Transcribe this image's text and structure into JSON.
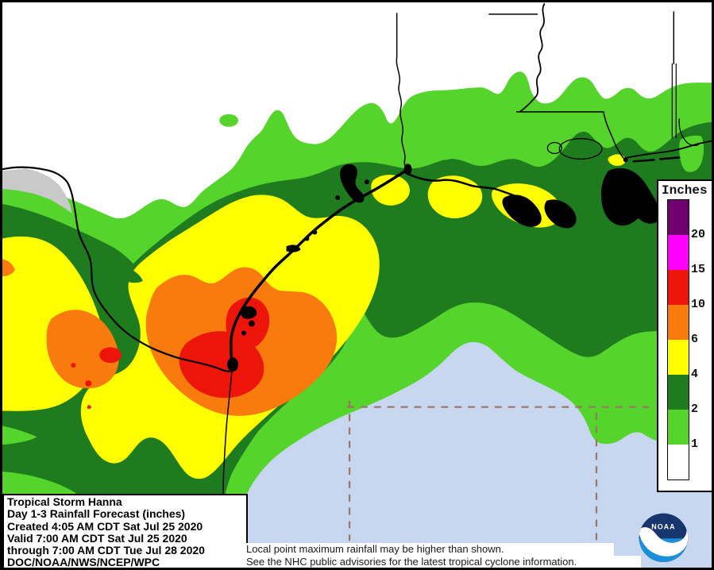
{
  "colors": {
    "white_lt1": "#ffffff",
    "light_green": "#55d42b",
    "dark_green": "#1e7b1e",
    "yellow": "#ffff00",
    "orange": "#f97b0d",
    "red": "#ed1509",
    "magenta": "#ff00ff",
    "purple": "#700070",
    "water": "#c7d7ef",
    "no_data_gray": "#c9c9c9",
    "marine_dash": "#9b7467",
    "logo_navy": "#17366e",
    "logo_blue": "#1d8fd8"
  },
  "legend": {
    "title": "Inches",
    "entries": [
      {
        "color": "#700070",
        "label": "20"
      },
      {
        "color": "#ff00ff",
        "label": "15"
      },
      {
        "color": "#ed1509",
        "label": "10"
      },
      {
        "color": "#f97b0d",
        "label": "6"
      },
      {
        "color": "#ffff00",
        "label": "4"
      },
      {
        "color": "#1e7b1e",
        "label": "2"
      },
      {
        "color": "#55d42b",
        "label": "1"
      },
      {
        "color": "#ffffff",
        "label": ""
      }
    ]
  },
  "info_box": {
    "lines": [
      "Tropical Storm Hanna",
      "Day 1-3 Rainfall Forecast (inches)",
      "Created 4:05 AM CDT Sat Jul 25 2020",
      "Valid 7:00 AM CDT Sat Jul 25 2020",
      "through 7:00 AM CDT Tue Jul 28 2020",
      "DOC/NOAA/NWS/NCEP/WPC"
    ]
  },
  "disclaimer": {
    "line1": "Local point maximum rainfall may be higher than shown.",
    "line2": "See the NHC public advisories for the latest tropical cyclone information."
  },
  "logo": {
    "label": "NOAA"
  },
  "map_data": {
    "type": "rainfall-contour-map",
    "region": "Texas / Louisiana Gulf Coast with adjacent Gulf of Mexico",
    "units": "inches",
    "bands_inches": [
      1,
      2,
      4,
      6,
      10,
      15,
      20
    ],
    "max_band_shown_inches": "10-15",
    "max_location": "South Texas near the lower Texas coast / Rio Grande"
  }
}
